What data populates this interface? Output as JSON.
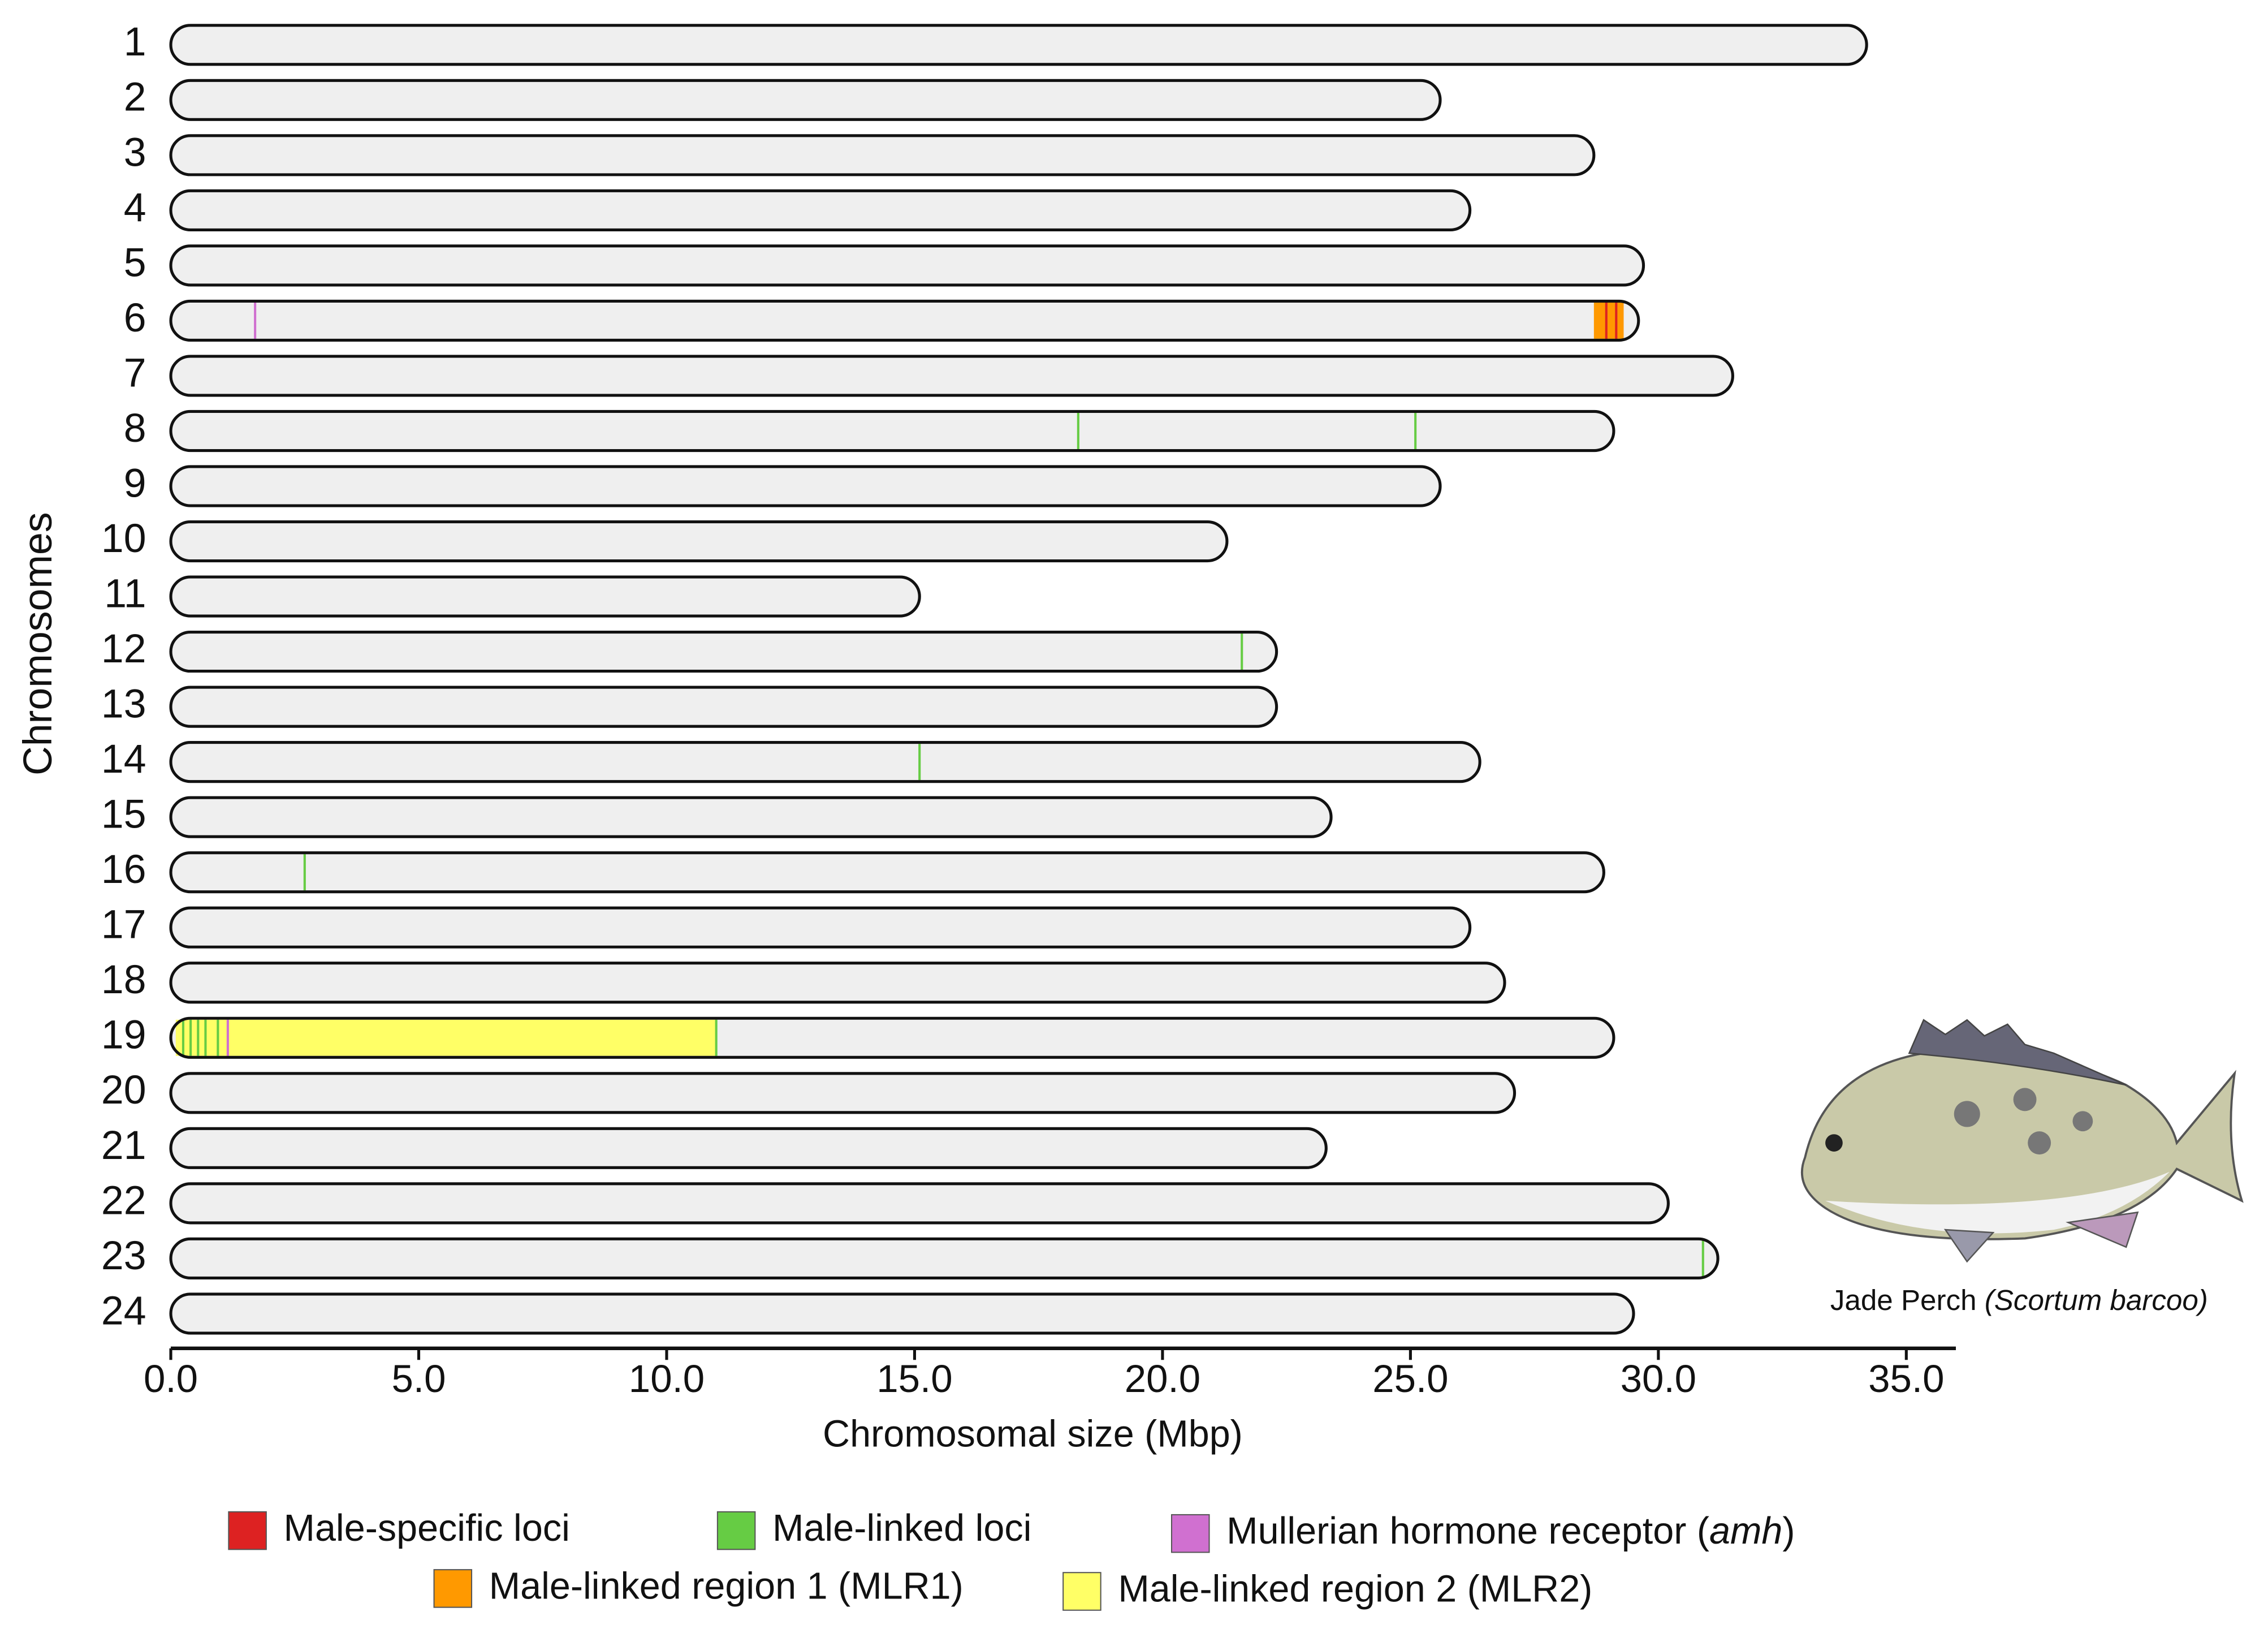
{
  "chart_data": {
    "type": "ideogram",
    "ylabel": "Chromosomes",
    "xlabel": "Chromosomal size (Mbp)",
    "categories": [
      "1",
      "2",
      "3",
      "4",
      "5",
      "6",
      "7",
      "8",
      "9",
      "10",
      "11",
      "12",
      "13",
      "14",
      "15",
      "16",
      "17",
      "18",
      "19",
      "20",
      "21",
      "22",
      "23",
      "24"
    ],
    "values": [
      34.2,
      25.6,
      28.7,
      26.2,
      29.7,
      29.6,
      31.5,
      29.1,
      25.6,
      21.3,
      15.1,
      22.3,
      22.3,
      26.4,
      23.4,
      28.9,
      26.2,
      26.9,
      29.1,
      27.1,
      23.3,
      30.2,
      31.2,
      29.5
    ],
    "color": "#efefef",
    "xlim": [
      0,
      36
    ],
    "xticks": [
      {
        "value": 0,
        "label": "0.0"
      },
      {
        "value": 5,
        "label": "5.0"
      },
      {
        "value": 10,
        "label": "10.0"
      },
      {
        "value": 15,
        "label": "15.0"
      },
      {
        "value": 20,
        "label": "20.0"
      },
      {
        "value": 25,
        "label": "25.0"
      },
      {
        "value": 30,
        "label": "30.0"
      },
      {
        "value": 35,
        "label": "35.0"
      }
    ],
    "regions": [
      {
        "chromosome": "6",
        "start": 28.7,
        "end": 29.3,
        "color": "#ff9900"
      },
      {
        "chromosome": "19",
        "start": 0.1,
        "end": 11.0,
        "color": "#ffff66"
      }
    ],
    "loci": [
      {
        "chromosome": "6",
        "position": 1.7,
        "color": "#d070d0"
      },
      {
        "chromosome": "6",
        "position": 28.95,
        "color": "#dd2222"
      },
      {
        "chromosome": "6",
        "position": 29.15,
        "color": "#dd2222"
      },
      {
        "chromosome": "8",
        "position": 18.3,
        "color": "#66cc44"
      },
      {
        "chromosome": "8",
        "position": 25.1,
        "color": "#66cc44"
      },
      {
        "chromosome": "12",
        "position": 21.6,
        "color": "#66cc44"
      },
      {
        "chromosome": "14",
        "position": 15.1,
        "color": "#66cc44"
      },
      {
        "chromosome": "16",
        "position": 2.7,
        "color": "#66cc44"
      },
      {
        "chromosome": "19",
        "position": 0.25,
        "color": "#66cc44"
      },
      {
        "chromosome": "19",
        "position": 0.4,
        "color": "#66cc44"
      },
      {
        "chromosome": "19",
        "position": 0.55,
        "color": "#66cc44"
      },
      {
        "chromosome": "19",
        "position": 0.7,
        "color": "#66cc44"
      },
      {
        "chromosome": "19",
        "position": 0.95,
        "color": "#66cc44"
      },
      {
        "chromosome": "19",
        "position": 1.15,
        "color": "#d070d0"
      },
      {
        "chromosome": "19",
        "position": 11.0,
        "color": "#66cc44"
      },
      {
        "chromosome": "23",
        "position": 30.9,
        "color": "#66cc44"
      }
    ],
    "legend": [
      {
        "color": "#dd2222",
        "parts": [
          {
            "text": "Male-specific loci"
          }
        ]
      },
      {
        "color": "#66cc44",
        "parts": [
          {
            "text": "Male-linked loci"
          }
        ]
      },
      {
        "color": "#d070d0",
        "parts": [
          {
            "text": "Mullerian hormone receptor ("
          },
          {
            "text": "amh",
            "italic": true
          },
          {
            "text": ")"
          }
        ]
      },
      {
        "color": "#ff9900",
        "parts": [
          {
            "text": "Male-linked region 1 (MLR1)"
          }
        ]
      },
      {
        "color": "#ffff66",
        "parts": [
          {
            "text": "Male-linked region 2 (MLR2)"
          }
        ]
      }
    ],
    "caption": [
      {
        "text": "Jade Perch "
      },
      {
        "text": "(Scortum barcoo)",
        "italic": true
      }
    ]
  }
}
